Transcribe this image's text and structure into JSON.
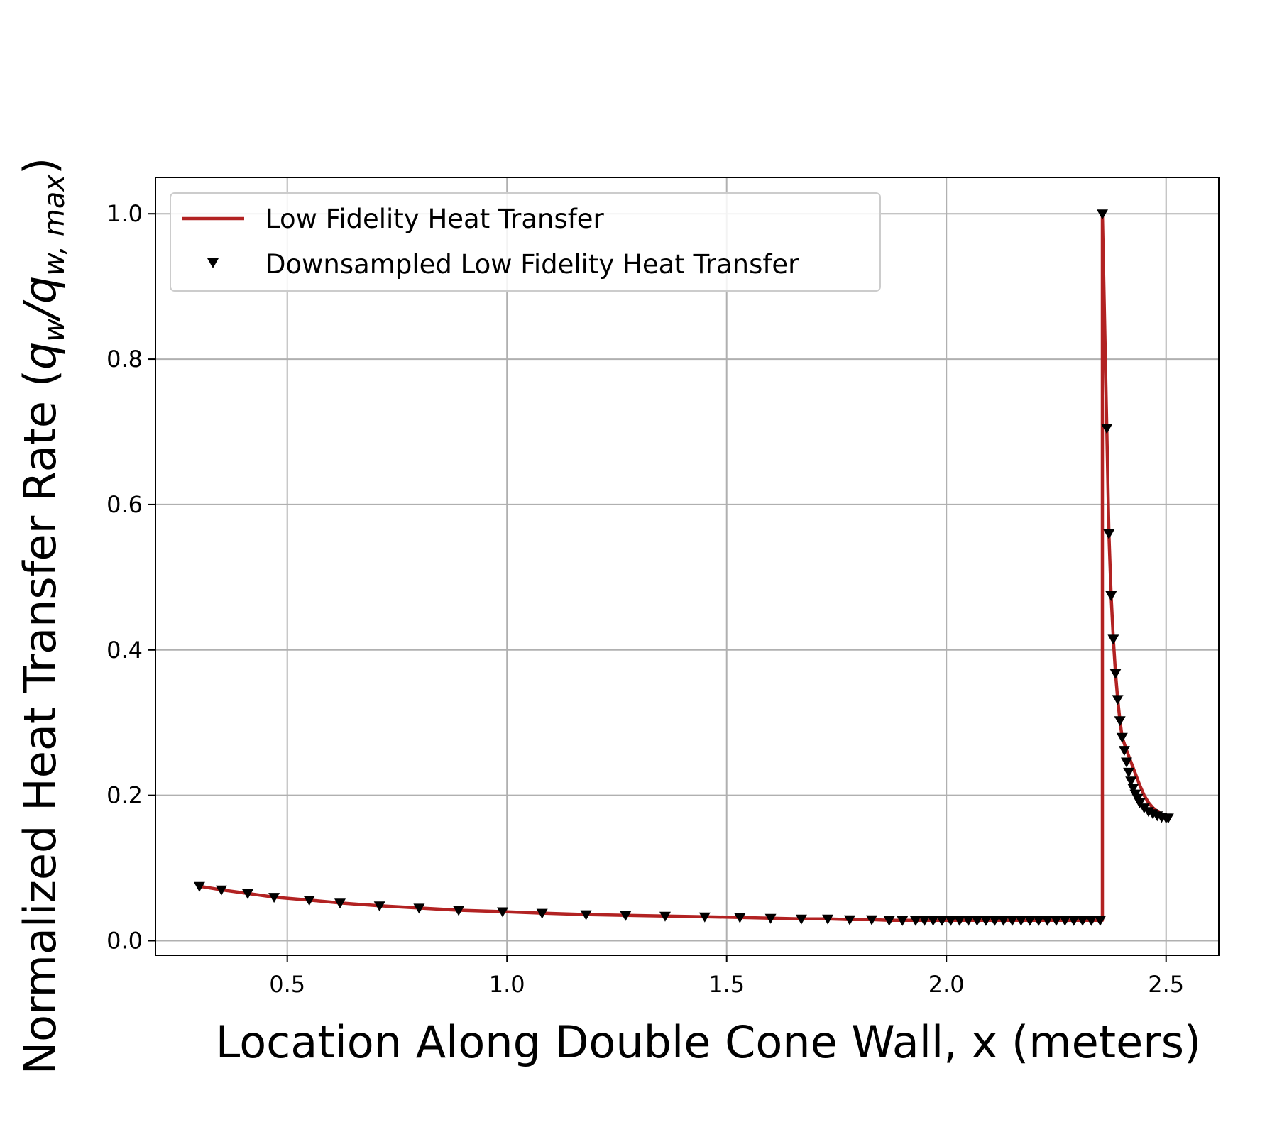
{
  "chart_data": {
    "type": "line",
    "xlabel": "Location Along Double Cone Wall, x (meters)",
    "ylabel_parts": {
      "prefix": "Normalized Heat Transfer Rate (",
      "q": "q",
      "w": "w",
      "slash": "/",
      "w_max": "w, max",
      "suffix": ")"
    },
    "xlim": [
      0.2,
      2.62
    ],
    "ylim": [
      -0.02,
      1.05
    ],
    "xticks": [
      0.5,
      1.0,
      1.5,
      2.0,
      2.5
    ],
    "xtick_labels": [
      "0.5",
      "1.0",
      "1.5",
      "2.0",
      "2.5"
    ],
    "yticks": [
      0.0,
      0.2,
      0.4,
      0.6,
      0.8,
      1.0
    ],
    "ytick_labels": [
      "0.0",
      "0.2",
      "0.4",
      "0.6",
      "0.8",
      "1.0"
    ],
    "grid": true,
    "legend": {
      "placement": "upper-left",
      "entries": [
        "Low Fidelity Heat Transfer",
        "Downsampled Low Fidelity Heat Transfer"
      ]
    },
    "colors": {
      "line": "#b22222",
      "markers": "#000000",
      "grid": "#b0b0b0"
    },
    "series": [
      {
        "name": "Low Fidelity Heat Transfer",
        "style": "line",
        "x": [
          0.3,
          0.35,
          0.41,
          0.47,
          0.55,
          0.62,
          0.71,
          0.8,
          0.89,
          0.99,
          1.08,
          1.18,
          1.27,
          1.36,
          1.45,
          1.53,
          1.6,
          1.67,
          1.73,
          1.78,
          1.83,
          1.87,
          1.91,
          1.94,
          1.97,
          2.0,
          2.05,
          2.1,
          2.15,
          2.2,
          2.25,
          2.3,
          2.355,
          2.355,
          2.365,
          2.37,
          2.375,
          2.38,
          2.385,
          2.39,
          2.395,
          2.4,
          2.41,
          2.42,
          2.43,
          2.44,
          2.45,
          2.46,
          2.47,
          2.48,
          2.49,
          2.5,
          2.51
        ],
        "y": [
          0.075,
          0.07,
          0.065,
          0.06,
          0.056,
          0.052,
          0.048,
          0.045,
          0.042,
          0.04,
          0.038,
          0.036,
          0.035,
          0.034,
          0.033,
          0.032,
          0.031,
          0.03,
          0.03,
          0.029,
          0.029,
          0.028,
          0.028,
          0.028,
          0.028,
          0.028,
          0.028,
          0.028,
          0.028,
          0.028,
          0.028,
          0.028,
          0.028,
          1.0,
          0.705,
          0.56,
          0.475,
          0.415,
          0.368,
          0.332,
          0.303,
          0.28,
          0.262,
          0.246,
          0.23,
          0.214,
          0.2,
          0.19,
          0.183,
          0.178,
          0.174,
          0.171,
          0.17
        ]
      },
      {
        "name": "Downsampled Low Fidelity Heat Transfer",
        "style": "markers",
        "x": [
          0.3,
          0.35,
          0.41,
          0.47,
          0.55,
          0.62,
          0.71,
          0.8,
          0.89,
          0.99,
          1.08,
          1.18,
          1.27,
          1.36,
          1.45,
          1.53,
          1.6,
          1.67,
          1.73,
          1.78,
          1.83,
          1.87,
          1.9,
          1.93,
          1.95,
          1.97,
          1.99,
          2.01,
          2.03,
          2.05,
          2.07,
          2.09,
          2.11,
          2.13,
          2.15,
          2.17,
          2.19,
          2.21,
          2.23,
          2.25,
          2.27,
          2.29,
          2.31,
          2.33,
          2.35,
          2.355,
          2.365,
          2.37,
          2.375,
          2.38,
          2.385,
          2.39,
          2.395,
          2.4,
          2.405,
          2.41,
          2.415,
          2.42,
          2.425,
          2.43,
          2.435,
          2.44,
          2.45,
          2.46,
          2.47,
          2.48,
          2.49,
          2.5,
          2.505
        ],
        "y": [
          0.075,
          0.07,
          0.065,
          0.06,
          0.056,
          0.052,
          0.048,
          0.045,
          0.042,
          0.04,
          0.038,
          0.036,
          0.035,
          0.034,
          0.033,
          0.032,
          0.031,
          0.03,
          0.03,
          0.029,
          0.029,
          0.028,
          0.028,
          0.028,
          0.028,
          0.028,
          0.028,
          0.028,
          0.028,
          0.028,
          0.028,
          0.028,
          0.028,
          0.028,
          0.028,
          0.028,
          0.028,
          0.028,
          0.028,
          0.028,
          0.028,
          0.028,
          0.028,
          0.028,
          0.028,
          1.0,
          0.705,
          0.56,
          0.475,
          0.415,
          0.368,
          0.332,
          0.303,
          0.28,
          0.262,
          0.246,
          0.232,
          0.22,
          0.21,
          0.202,
          0.196,
          0.19,
          0.183,
          0.178,
          0.175,
          0.172,
          0.17,
          0.169,
          0.169
        ]
      }
    ]
  }
}
